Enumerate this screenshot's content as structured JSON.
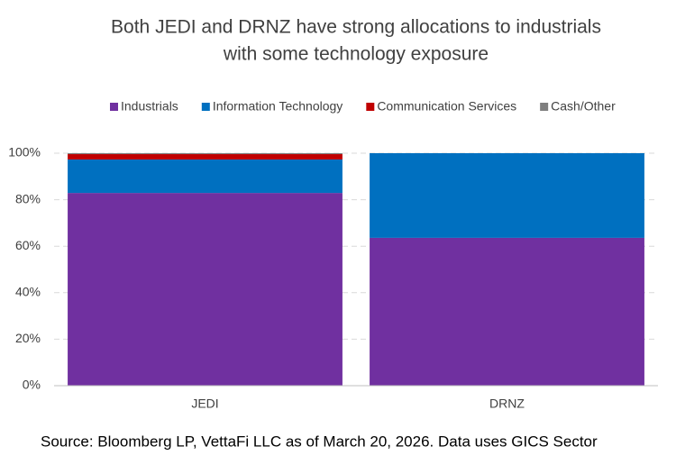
{
  "chart_data": {
    "type": "stacked_bar",
    "title": [
      "Both JEDI and DRNZ have strong allocations to industrials",
      "with some technology exposure"
    ],
    "categories": [
      "JEDI",
      "DRNZ"
    ],
    "series": [
      {
        "name": "Industrials",
        "color": "#7030a0",
        "values": [
          82.9,
          63.6
        ]
      },
      {
        "name": "Information Technology",
        "color": "#0070c0",
        "values": [
          14.4,
          36.4
        ]
      },
      {
        "name": "Communication Services",
        "color": "#c00000",
        "values": [
          2.3,
          0
        ]
      },
      {
        "name": "Cash/Other",
        "color": "#7f7f7f",
        "values": [
          0.4,
          0
        ]
      }
    ],
    "ylim": [
      0,
      100
    ],
    "yticks": [
      {
        "value": 0,
        "label": "0%"
      },
      {
        "value": 20,
        "label": "20%"
      },
      {
        "value": 40,
        "label": "40%"
      },
      {
        "value": 60,
        "label": "60%"
      },
      {
        "value": 80,
        "label": "80%"
      },
      {
        "value": 100,
        "label": "100%"
      }
    ],
    "grid": true,
    "legend": "top",
    "source": "Source: Bloomberg LP, VettaFi LLC as of March 20, 2026. Data uses GICS Sector"
  }
}
